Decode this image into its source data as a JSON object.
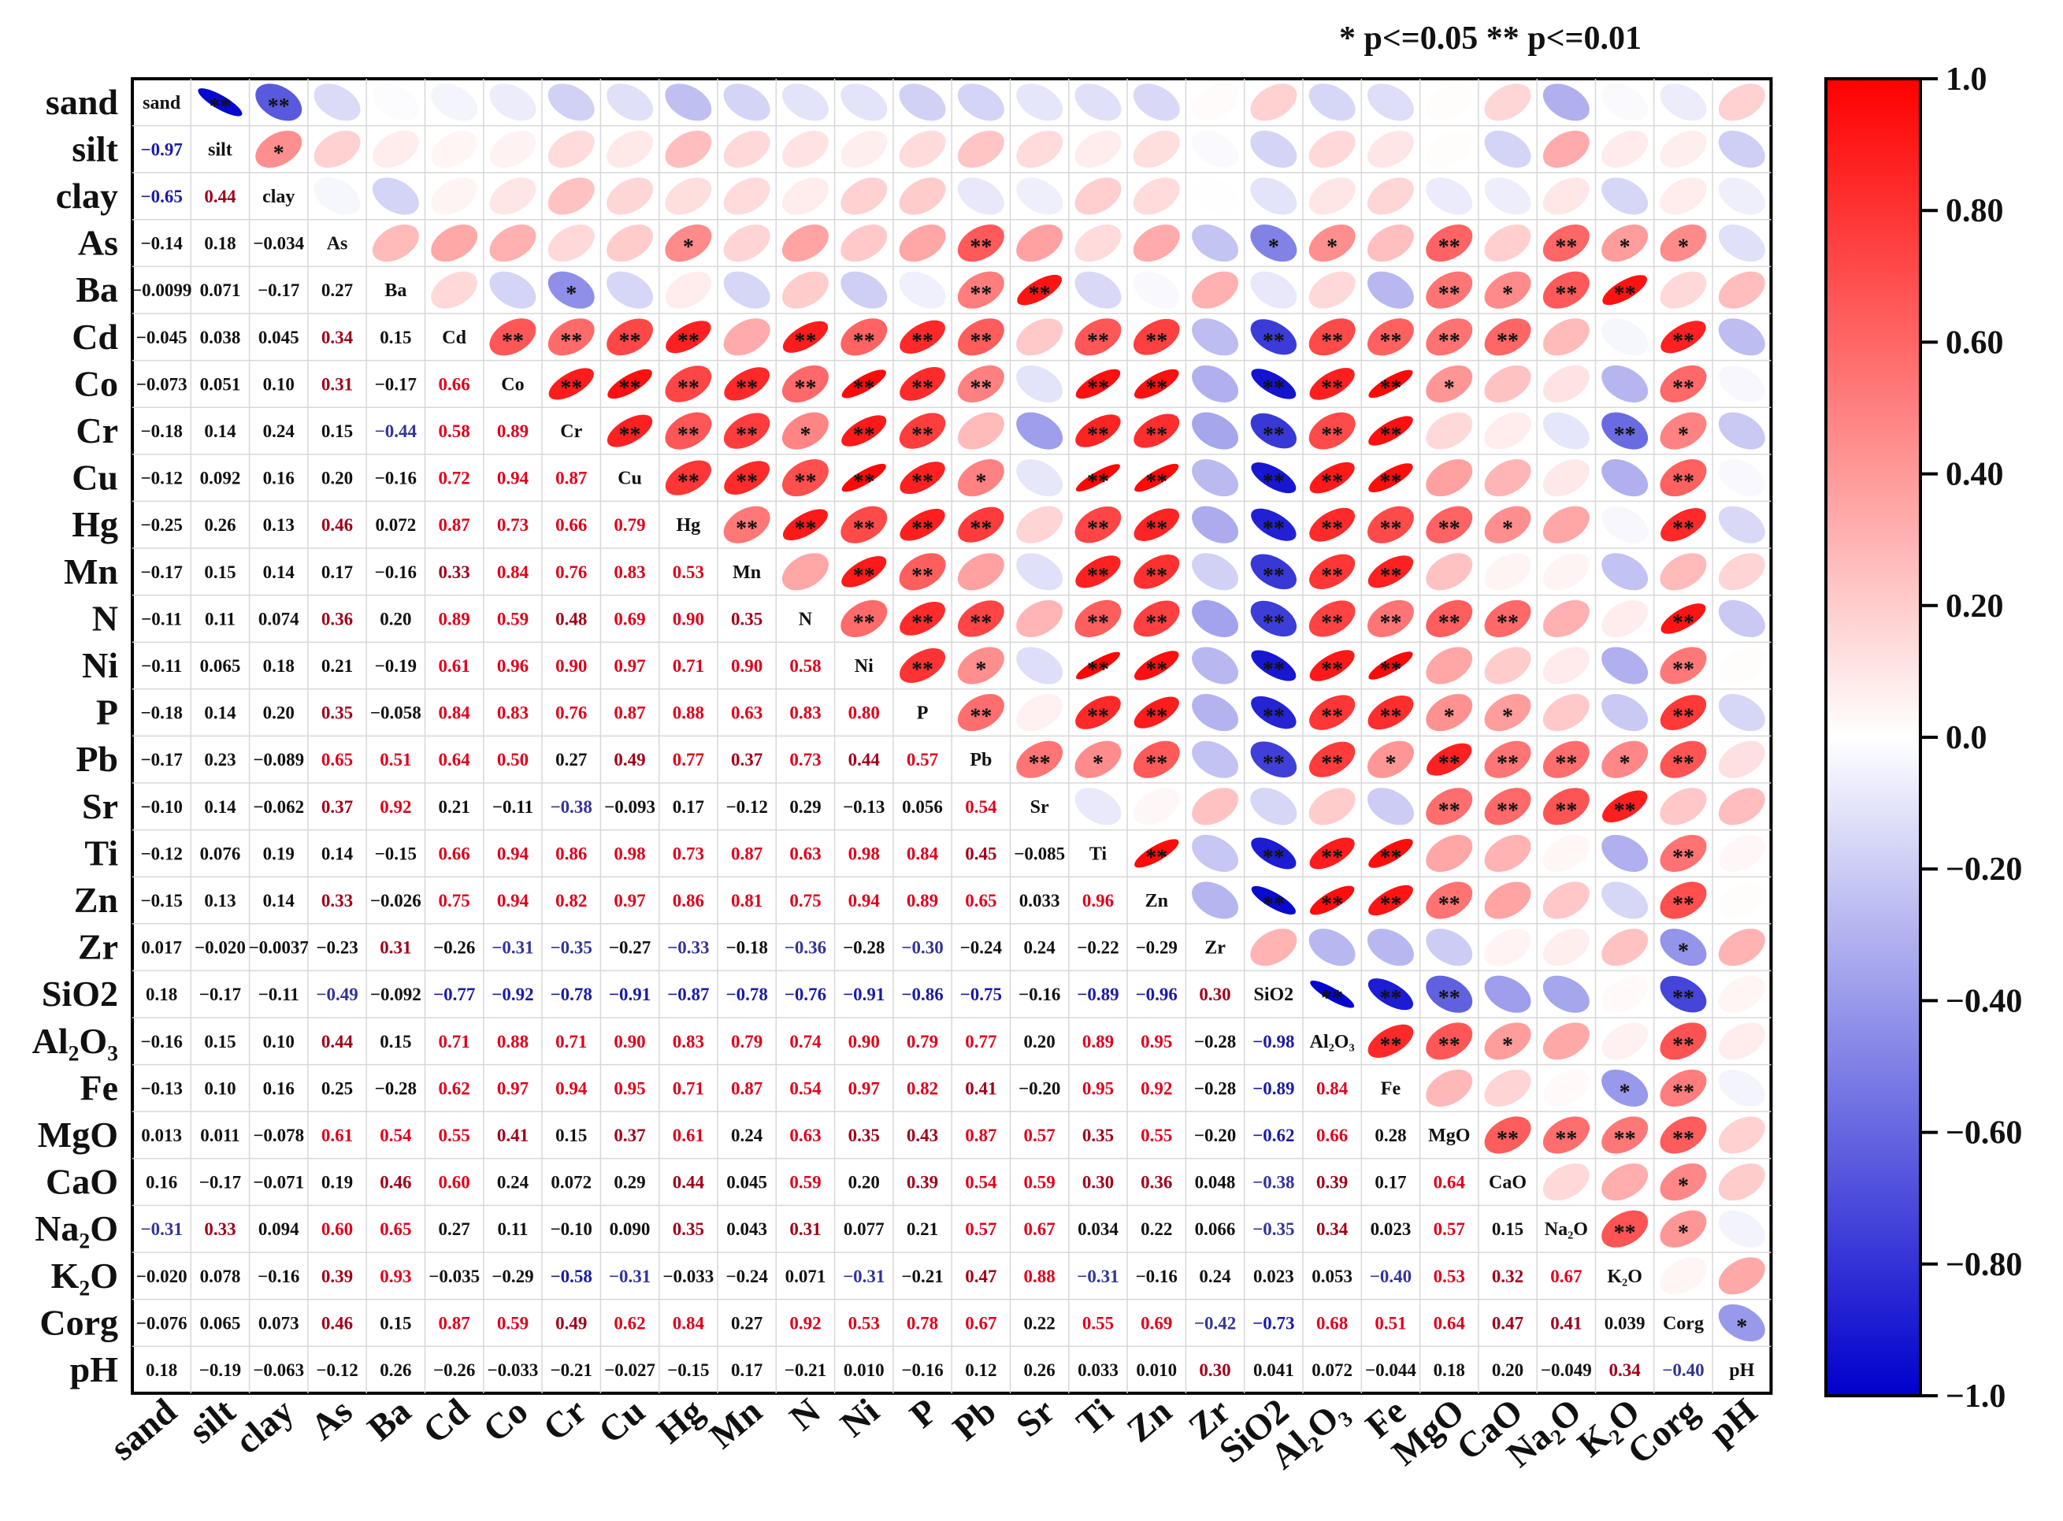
{
  "chart_data": {
    "type": "heatmap",
    "title": "",
    "legend_note": "* p<=0.05  ** p<=0.01",
    "variables": [
      "sand",
      "silt",
      "clay",
      "As",
      "Ba",
      "Cd",
      "Co",
      "Cr",
      "Cu",
      "Hg",
      "Mn",
      "N",
      "Ni",
      "P",
      "Pb",
      "Sr",
      "Ti",
      "Zn",
      "Zr",
      "SiO2",
      "Al2O3",
      "Fe",
      "MgO",
      "CaO",
      "Na2O",
      "K2O",
      "Corg",
      "pH"
    ],
    "display_labels": [
      "sand",
      "silt",
      "clay",
      "As",
      "Ba",
      "Cd",
      "Co",
      "Cr",
      "Cu",
      "Hg",
      "Mn",
      "N",
      "Ni",
      "P",
      "Pb",
      "Sr",
      "Ti",
      "Zn",
      "Zr",
      "SiO2",
      "Al₂O₃",
      "Fe",
      "MgO",
      "CaO",
      "Na₂O",
      "K₂O",
      "Corg",
      "pH"
    ],
    "lower_triangle_text": [
      [],
      [
        "−0.97"
      ],
      [
        "−0.65",
        "0.44"
      ],
      [
        "−0.14",
        "0.18",
        "−0.034"
      ],
      [
        "−0.0099",
        "0.071",
        "−0.17",
        "0.27"
      ],
      [
        "−0.045",
        "0.038",
        "0.045",
        "0.34",
        "0.15"
      ],
      [
        "−0.073",
        "0.051",
        "0.10",
        "0.31",
        "−0.17",
        "0.66"
      ],
      [
        "−0.18",
        "0.14",
        "0.24",
        "0.15",
        "−0.44",
        "0.58",
        "0.89"
      ],
      [
        "−0.12",
        "0.092",
        "0.16",
        "0.20",
        "−0.16",
        "0.72",
        "0.94",
        "0.87"
      ],
      [
        "−0.25",
        "0.26",
        "0.13",
        "0.46",
        "0.072",
        "0.87",
        "0.73",
        "0.66",
        "0.79"
      ],
      [
        "−0.17",
        "0.15",
        "0.14",
        "0.17",
        "−0.16",
        "0.33",
        "0.84",
        "0.76",
        "0.83",
        "0.53"
      ],
      [
        "−0.11",
        "0.11",
        "0.074",
        "0.36",
        "0.20",
        "0.89",
        "0.59",
        "0.48",
        "0.69",
        "0.90",
        "0.35"
      ],
      [
        "−0.11",
        "0.065",
        "0.18",
        "0.21",
        "−0.19",
        "0.61",
        "0.96",
        "0.90",
        "0.97",
        "0.71",
        "0.90",
        "0.58"
      ],
      [
        "−0.18",
        "0.14",
        "0.20",
        "0.35",
        "−0.058",
        "0.84",
        "0.83",
        "0.76",
        "0.87",
        "0.88",
        "0.63",
        "0.83",
        "0.80"
      ],
      [
        "−0.17",
        "0.23",
        "−0.089",
        "0.65",
        "0.51",
        "0.64",
        "0.50",
        "0.27",
        "0.49",
        "0.77",
        "0.37",
        "0.73",
        "0.44",
        "0.57"
      ],
      [
        "−0.10",
        "0.14",
        "−0.062",
        "0.37",
        "0.92",
        "0.21",
        "−0.11",
        "−0.38",
        "−0.093",
        "0.17",
        "−0.12",
        "0.29",
        "−0.13",
        "0.056",
        "0.54"
      ],
      [
        "−0.12",
        "0.076",
        "0.19",
        "0.14",
        "−0.15",
        "0.66",
        "0.94",
        "0.86",
        "0.98",
        "0.73",
        "0.87",
        "0.63",
        "0.98",
        "0.84",
        "0.45",
        "−0.085"
      ],
      [
        "−0.15",
        "0.13",
        "0.14",
        "0.33",
        "−0.026",
        "0.75",
        "0.94",
        "0.82",
        "0.97",
        "0.86",
        "0.81",
        "0.75",
        "0.94",
        "0.89",
        "0.65",
        "0.033",
        "0.96"
      ],
      [
        "0.017",
        "−0.020",
        "−0.0037",
        "−0.23",
        "0.31",
        "−0.26",
        "−0.31",
        "−0.35",
        "−0.27",
        "−0.33",
        "−0.18",
        "−0.36",
        "−0.28",
        "−0.30",
        "−0.24",
        "0.24",
        "−0.22",
        "−0.29"
      ],
      [
        "0.18",
        "−0.17",
        "−0.11",
        "−0.49",
        "−0.092",
        "−0.77",
        "−0.92",
        "−0.78",
        "−0.91",
        "−0.87",
        "−0.78",
        "−0.76",
        "−0.91",
        "−0.86",
        "−0.75",
        "−0.16",
        "−0.89",
        "−0.96",
        "0.30"
      ],
      [
        "−0.16",
        "0.15",
        "0.10",
        "0.44",
        "0.15",
        "0.71",
        "0.88",
        "0.71",
        "0.90",
        "0.83",
        "0.79",
        "0.74",
        "0.90",
        "0.79",
        "0.77",
        "0.20",
        "0.89",
        "0.95",
        "−0.28",
        "−0.98"
      ],
      [
        "−0.13",
        "0.10",
        "0.16",
        "0.25",
        "−0.28",
        "0.62",
        "0.97",
        "0.94",
        "0.95",
        "0.71",
        "0.87",
        "0.54",
        "0.97",
        "0.82",
        "0.41",
        "−0.20",
        "0.95",
        "0.92",
        "−0.28",
        "−0.89",
        "0.84"
      ],
      [
        "0.013",
        "0.011",
        "−0.078",
        "0.61",
        "0.54",
        "0.55",
        "0.41",
        "0.15",
        "0.37",
        "0.61",
        "0.24",
        "0.63",
        "0.35",
        "0.43",
        "0.87",
        "0.57",
        "0.35",
        "0.55",
        "−0.20",
        "−0.62",
        "0.66",
        "0.28"
      ],
      [
        "0.16",
        "−0.17",
        "−0.071",
        "0.19",
        "0.46",
        "0.60",
        "0.24",
        "0.072",
        "0.29",
        "0.44",
        "0.045",
        "0.59",
        "0.20",
        "0.39",
        "0.54",
        "0.59",
        "0.30",
        "0.36",
        "0.048",
        "−0.38",
        "0.39",
        "0.17",
        "0.64"
      ],
      [
        "−0.31",
        "0.33",
        "0.094",
        "0.60",
        "0.65",
        "0.27",
        "0.11",
        "−0.10",
        "0.090",
        "0.35",
        "0.043",
        "0.31",
        "0.077",
        "0.21",
        "0.57",
        "0.67",
        "0.034",
        "0.22",
        "0.066",
        "−0.35",
        "0.34",
        "0.023",
        "0.57",
        "0.15"
      ],
      [
        "−0.020",
        "0.078",
        "−0.16",
        "0.39",
        "0.93",
        "−0.035",
        "−0.29",
        "−0.58",
        "−0.31",
        "−0.033",
        "−0.24",
        "0.071",
        "−0.31",
        "−0.21",
        "0.47",
        "0.88",
        "−0.31",
        "−0.16",
        "0.24",
        "0.023",
        "0.053",
        "−0.40",
        "0.53",
        "0.32",
        "0.67"
      ],
      [
        "−0.076",
        "0.065",
        "0.073",
        "0.46",
        "0.15",
        "0.87",
        "0.59",
        "0.49",
        "0.62",
        "0.84",
        "0.27",
        "0.92",
        "0.53",
        "0.78",
        "0.67",
        "0.22",
        "0.55",
        "0.69",
        "−0.42",
        "−0.73",
        "0.68",
        "0.51",
        "0.64",
        "0.47",
        "0.41",
        "0.039"
      ],
      [
        "0.18",
        "−0.19",
        "−0.063",
        "−0.12",
        "0.26",
        "−0.26",
        "−0.033",
        "−0.21",
        "−0.027",
        "−0.15",
        "0.17",
        "−0.21",
        "0.010",
        "−0.16",
        "0.12",
        "0.26",
        "0.033",
        "0.010",
        "0.30",
        "0.041",
        "0.072",
        "−0.044",
        "0.18",
        "0.20",
        "−0.049",
        "0.34",
        "−0.40"
      ]
    ],
    "colorbar": {
      "range": [
        -1.0,
        1.0
      ],
      "ticks": [
        "1.0",
        "0.80",
        "0.60",
        "0.40",
        "0.20",
        "0.0",
        "−0.20",
        "−0.40",
        "−0.60",
        "−0.80",
        "−1.0"
      ],
      "colors": {
        "neg": "#0000cc",
        "mid": "#ffffff",
        "pos": "#ff0000"
      }
    },
    "significance": "stars from |r| and n",
    "upper_triangle": "ellipses mirror lower triangle values with significance stars"
  }
}
